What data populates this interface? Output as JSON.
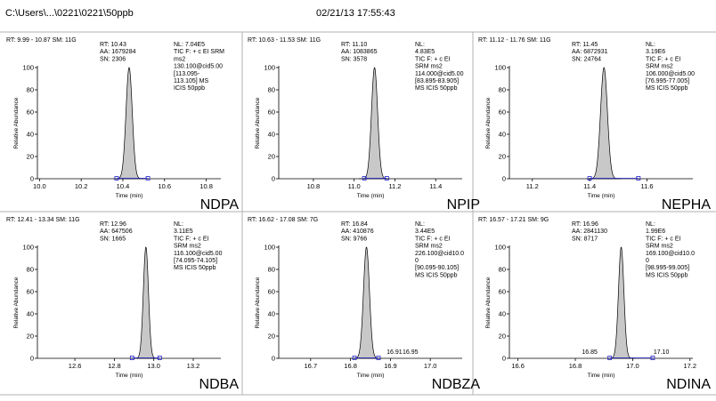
{
  "header": {
    "path": "C:\\Users\\...\\0221\\0221\\50ppb",
    "datetime": "02/21/13 17:55:43"
  },
  "colors": {
    "peak_fill": "#c8c8c8",
    "baseline_marker": "#2020c8",
    "divider": "#b0b0b0"
  },
  "chart_data": [
    {
      "type": "area",
      "compound": "NDPA",
      "rt_line": "RT: 9.99 - 10.87   SM: 11G",
      "peak_info": [
        "RT: 10.43",
        "AA: 1679284",
        "SN: 2306"
      ],
      "scan_info": [
        "NL: 7.04E5",
        "TIC F: + c EI SRM",
        "ms2",
        "130.100@cid5.00",
        "[113.095-",
        "113.105]  MS",
        "ICIS 50ppb"
      ],
      "xlabel": "Time (min)",
      "ylabel": "Relative Abundance",
      "xlim": [
        9.99,
        10.87
      ],
      "ylim": [
        0,
        100
      ],
      "xticks": [
        "10.0",
        "10.2",
        "10.4",
        "10.6",
        "10.8"
      ],
      "yticks": [
        "0",
        "20",
        "40",
        "60",
        "80",
        "100"
      ],
      "peaks": [
        {
          "rt": 10.43,
          "height": 100,
          "sigma": 0.015
        }
      ],
      "baseline_markers": [
        10.37,
        10.52
      ],
      "extra_labels": []
    },
    {
      "type": "area",
      "compound": "NPIP",
      "rt_line": "RT: 10.63 - 11.53   SM: 11G",
      "peak_info": [
        "RT: 11.10",
        "AA: 1083865",
        "SN: 3578"
      ],
      "scan_info": [
        "NL:",
        "4.83E5",
        "TIC F: + c EI",
        "SRM ms2",
        "114.000@cid5.00",
        "[83.895-83.905]",
        "MS  ICIS 50ppb"
      ],
      "xlabel": "Time (min)",
      "ylabel": "Relative Abundance",
      "xlim": [
        10.63,
        11.53
      ],
      "ylim": [
        0,
        100
      ],
      "xticks": [
        "10.8",
        "11.0",
        "11.2",
        "11.4"
      ],
      "yticks": [
        "0",
        "20",
        "40",
        "60",
        "80",
        "100"
      ],
      "peaks": [
        {
          "rt": 11.1,
          "height": 100,
          "sigma": 0.015
        }
      ],
      "baseline_markers": [
        11.05,
        11.16
      ],
      "extra_labels": []
    },
    {
      "type": "area",
      "compound": "NEPHA",
      "rt_line": "RT: 11.12 - 11.76   SM: 11G",
      "peak_info": [
        "RT: 11.45",
        "AA: 6872931",
        "SN: 24764"
      ],
      "scan_info": [
        "NL:",
        "3.19E6",
        "TIC F: + c EI",
        "SRM ms2",
        "106.000@cid5.00",
        "[76.995-77.005]",
        "MS  ICIS 50ppb"
      ],
      "xlabel": "Time (min)",
      "ylabel": "Relative Abundance",
      "xlim": [
        11.12,
        11.76
      ],
      "ylim": [
        0,
        100
      ],
      "xticks": [
        "11.2",
        "11.4",
        "11.6"
      ],
      "yticks": [
        "0",
        "20",
        "40",
        "60",
        "80",
        "100"
      ],
      "peaks": [
        {
          "rt": 11.45,
          "height": 100,
          "sigma": 0.012
        }
      ],
      "baseline_markers": [
        11.4,
        11.57
      ],
      "extra_labels": []
    },
    {
      "type": "area",
      "compound": "NDBA",
      "rt_line": "RT: 12.41 - 13.34   SM: 11G",
      "peak_info": [
        "RT: 12.96",
        "AA: 647506",
        "SN: 1665"
      ],
      "scan_info": [
        "NL:",
        "3.11E5",
        "TIC F: + c EI",
        "SRM ms2",
        "116.100@cid5.00",
        "[74.095-74.105]",
        "MS  ICIS 50ppb"
      ],
      "xlabel": "Time (min)",
      "ylabel": "Relative Abundance",
      "xlim": [
        12.41,
        13.34
      ],
      "ylim": [
        0,
        100
      ],
      "xticks": [
        "12.6",
        "12.8",
        "13.0",
        "13.2"
      ],
      "yticks": [
        "0",
        "20",
        "40",
        "60",
        "80",
        "100"
      ],
      "peaks": [
        {
          "rt": 12.96,
          "height": 100,
          "sigma": 0.013
        }
      ],
      "baseline_markers": [
        12.89,
        13.03
      ],
      "extra_labels": []
    },
    {
      "type": "area",
      "compound": "NDBZA",
      "rt_line": "RT: 16.62 - 17.08   SM: 7G",
      "peak_info": [
        "RT: 16.84",
        "AA: 410876",
        "SN: 9766"
      ],
      "scan_info": [
        "NL:",
        "3.44E5",
        "TIC F: + c EI",
        "SRM ms2",
        "226.100@cid10.0",
        "0",
        "[90.095-90.105]",
        "MS  ICIS 50ppb"
      ],
      "xlabel": "Time (min)",
      "ylabel": "Relative Abundance",
      "xlim": [
        16.62,
        17.08
      ],
      "ylim": [
        0,
        100
      ],
      "xticks": [
        "16.7",
        "16.8",
        "16.9",
        "17.0"
      ],
      "yticks": [
        "0",
        "20",
        "40",
        "60",
        "80",
        "100"
      ],
      "peaks": [
        {
          "rt": 16.84,
          "height": 100,
          "sigma": 0.0075
        }
      ],
      "baseline_markers": [
        16.81,
        16.87
      ],
      "extra_labels": [
        {
          "rt": 16.91,
          "text": "16.91"
        },
        {
          "rt": 16.95,
          "text": "16.95"
        }
      ]
    },
    {
      "type": "area",
      "compound": "NDINA",
      "rt_line": "RT: 16.57 - 17.21   SM: 9G",
      "peak_info": [
        "RT: 16.96",
        "AA: 2841130",
        "SN: 8717"
      ],
      "scan_info": [
        "NL:",
        "1.99E6",
        "TIC F: + c EI",
        "SRM ms2",
        "169.100@cid10.0",
        "0",
        "[98.995-99.005]",
        "MS  ICIS 50ppb"
      ],
      "xlabel": "Time (min)",
      "ylabel": "Relative Abundance",
      "xlim": [
        16.57,
        17.21
      ],
      "ylim": [
        0,
        100
      ],
      "xticks": [
        "16.6",
        "16.8",
        "17.0",
        "17.2"
      ],
      "yticks": [
        "0",
        "20",
        "40",
        "60",
        "80",
        "100"
      ],
      "peaks": [
        {
          "rt": 16.96,
          "height": 100,
          "sigma": 0.0095
        }
      ],
      "baseline_markers": [
        16.92,
        17.07
      ],
      "extra_labels": [
        {
          "rt": 16.85,
          "text": "16.85"
        },
        {
          "rt": 17.1,
          "text": "17.10"
        }
      ]
    }
  ]
}
